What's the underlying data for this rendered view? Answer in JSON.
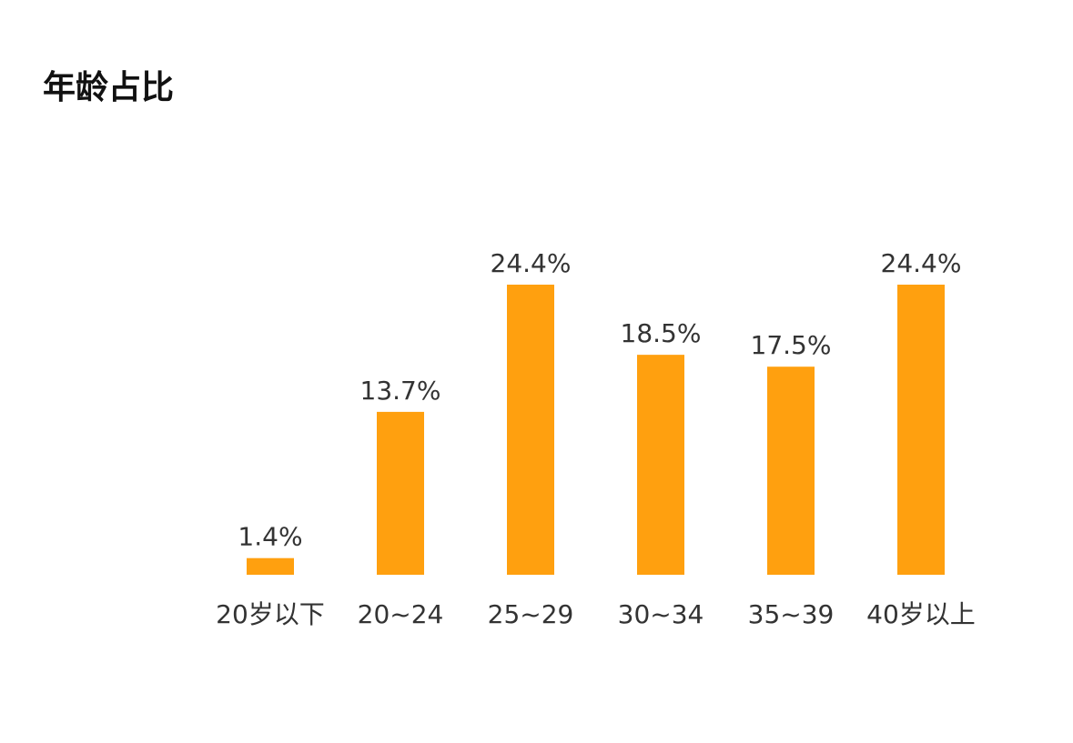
{
  "chart_data": {
    "type": "bar",
    "title": "年龄占比",
    "categories": [
      "20岁以下",
      "20~24",
      "25~29",
      "30~34",
      "35~39",
      "40岁以上"
    ],
    "values": [
      1.4,
      13.7,
      24.4,
      18.5,
      17.5,
      24.4
    ],
    "value_labels": [
      "1.4%",
      "13.7%",
      "24.4%",
      "18.5%",
      "17.5%",
      "24.4%"
    ],
    "color": "#ffa00f"
  }
}
